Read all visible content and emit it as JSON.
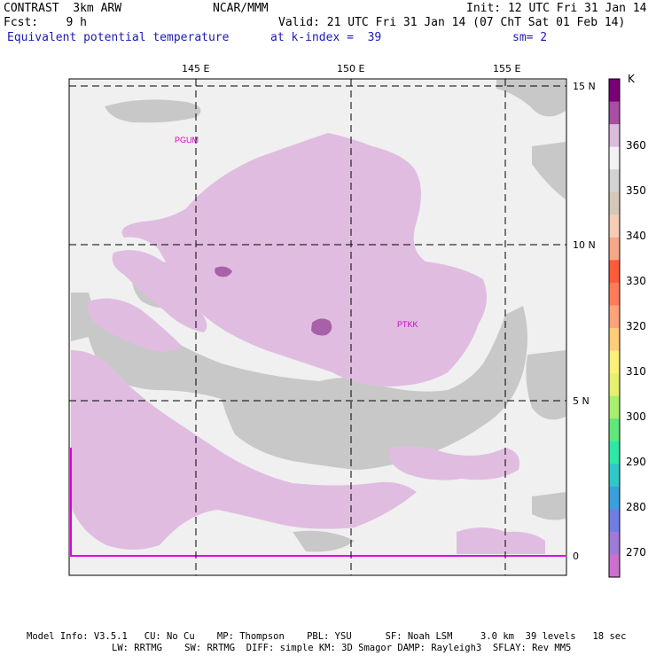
{
  "header": {
    "model": "CONTRAST  3km ARW",
    "org": "NCAR/MMM",
    "init": "Init: 12 UTC Fri 31 Jan 14",
    "fcst": "Fcst:    9 h",
    "valid": "Valid: 21 UTC Fri 31 Jan 14 (07 ChT Sat 01 Feb 14)",
    "field": "Equivalent potential temperature",
    "level": "at k-index =  39",
    "smooth": "sm= 2"
  },
  "map": {
    "lon_labels": [
      "145 E",
      "150 E",
      "155 E"
    ],
    "lat_labels": [
      "15 N",
      "10 N",
      "5 N",
      "0"
    ],
    "stations": [
      "PGUM",
      "PTKK"
    ],
    "colors": {
      "background": "#f0f0f0",
      "land": "#c8c8c8",
      "theta_360": "#e0bde0",
      "theta_370": "#a860a8",
      "equator_line": "#e000e0"
    }
  },
  "colorbar": {
    "unit": "K",
    "labels": [
      "360",
      "350",
      "340",
      "330",
      "320",
      "310",
      "300",
      "290",
      "280",
      "270"
    ],
    "colors": [
      "#7a0078",
      "#a84ea4",
      "#dcbcdc",
      "#f2f2f2",
      "#d2d2d2",
      "#d4c8b8",
      "#f6cdb4",
      "#f6a886",
      "#ff5a3a",
      "#ff7c5a",
      "#ffa37a",
      "#ffcc7a",
      "#fff07a",
      "#e6f06e",
      "#aaee6e",
      "#60e87a",
      "#2ee8a6",
      "#2ec8c8",
      "#3aa0dc",
      "#6e7ee6",
      "#a07ad6",
      "#cc70d0"
    ]
  },
  "footer": {
    "line1": "Model Info: V3.5.1   CU: No Cu    MP: Thompson    PBL: YSU      SF: Noah LSM     3.0 km  39 levels   18 sec",
    "line2": "LW: RRTMG    SW: RRTMG  DIFF: simple KM: 3D Smagor DAMP: Rayleigh3  SFLAY: Rev MM5"
  }
}
